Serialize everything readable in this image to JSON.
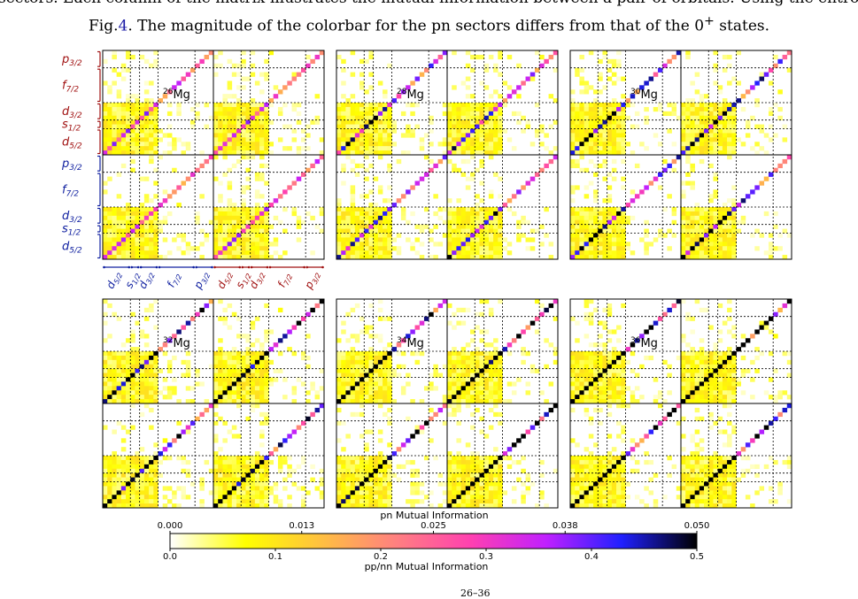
{
  "caption": {
    "line1": "sectors. Each column of the matrix illustrates the mutual information between a pair of orbitals. Using the entropy and mutual information as defined in",
    "fig_prefix": "Fig.",
    "fig_number": "4",
    "line2_rest": ". The magnitude of the colorbar for the pn sectors differs from that of the 0",
    "superscript": "+",
    "line2_end": " states."
  },
  "bottom_fragment": "26–36",
  "chart_data": {
    "type": "heatmap",
    "panels": [
      {
        "nucleus": "Mg",
        "mass": "26"
      },
      {
        "nucleus": "Mg",
        "mass": "28"
      },
      {
        "nucleus": "Mg",
        "mass": "30"
      },
      {
        "nucleus": "Mg",
        "mass": "32"
      },
      {
        "nucleus": "Mg",
        "mass": "34"
      },
      {
        "nucleus": "Mg",
        "mass": "36"
      }
    ],
    "orbital_axis": {
      "proton_labels": [
        {
          "l": "p",
          "j": "3/2"
        },
        {
          "l": "f",
          "j": "7/2"
        },
        {
          "l": "d",
          "j": "3/2"
        },
        {
          "l": "s",
          "j": "1/2"
        },
        {
          "l": "d",
          "j": "5/2"
        }
      ],
      "neutron_labels": [
        {
          "l": "p",
          "j": "3/2"
        },
        {
          "l": "f",
          "j": "7/2"
        },
        {
          "l": "d",
          "j": "3/2"
        },
        {
          "l": "s",
          "j": "1/2"
        },
        {
          "l": "d",
          "j": "5/2"
        }
      ],
      "x_labels": [
        {
          "l": "d",
          "j": "5/2",
          "group": "neutron"
        },
        {
          "l": "s",
          "j": "1/2",
          "group": "neutron"
        },
        {
          "l": "d",
          "j": "3/2",
          "group": "neutron"
        },
        {
          "l": "f",
          "j": "7/2",
          "group": "neutron"
        },
        {
          "l": "p",
          "j": "3/2",
          "group": "neutron"
        },
        {
          "l": "d",
          "j": "5/2",
          "group": "proton"
        },
        {
          "l": "s",
          "j": "1/2",
          "group": "proton"
        },
        {
          "l": "d",
          "j": "3/2",
          "group": "proton"
        },
        {
          "l": "f",
          "j": "7/2",
          "group": "proton"
        },
        {
          "l": "p",
          "j": "3/2",
          "group": "proton"
        }
      ],
      "block_sizes": [
        6,
        2,
        4,
        8,
        4
      ]
    },
    "colorbars": {
      "pn": {
        "label": "pn Mutual Information",
        "ticks": [
          "0.000",
          "0.013",
          "0.025",
          "0.038",
          "0.050"
        ],
        "range": [
          0,
          0.05
        ]
      },
      "pp_nn": {
        "label": "pp/nn Mutual Information",
        "ticks": [
          "0.0",
          "0.1",
          "0.2",
          "0.3",
          "0.4",
          "0.5"
        ],
        "range": [
          0,
          0.5
        ]
      },
      "colormap": [
        "#ffffff",
        "#ffff00",
        "#ffc040",
        "#ff8080",
        "#ff40b0",
        "#c020ff",
        "#2020ff",
        "#000000"
      ]
    },
    "colors": {
      "proton": "#a01010",
      "neutron": "#1020a0"
    }
  }
}
